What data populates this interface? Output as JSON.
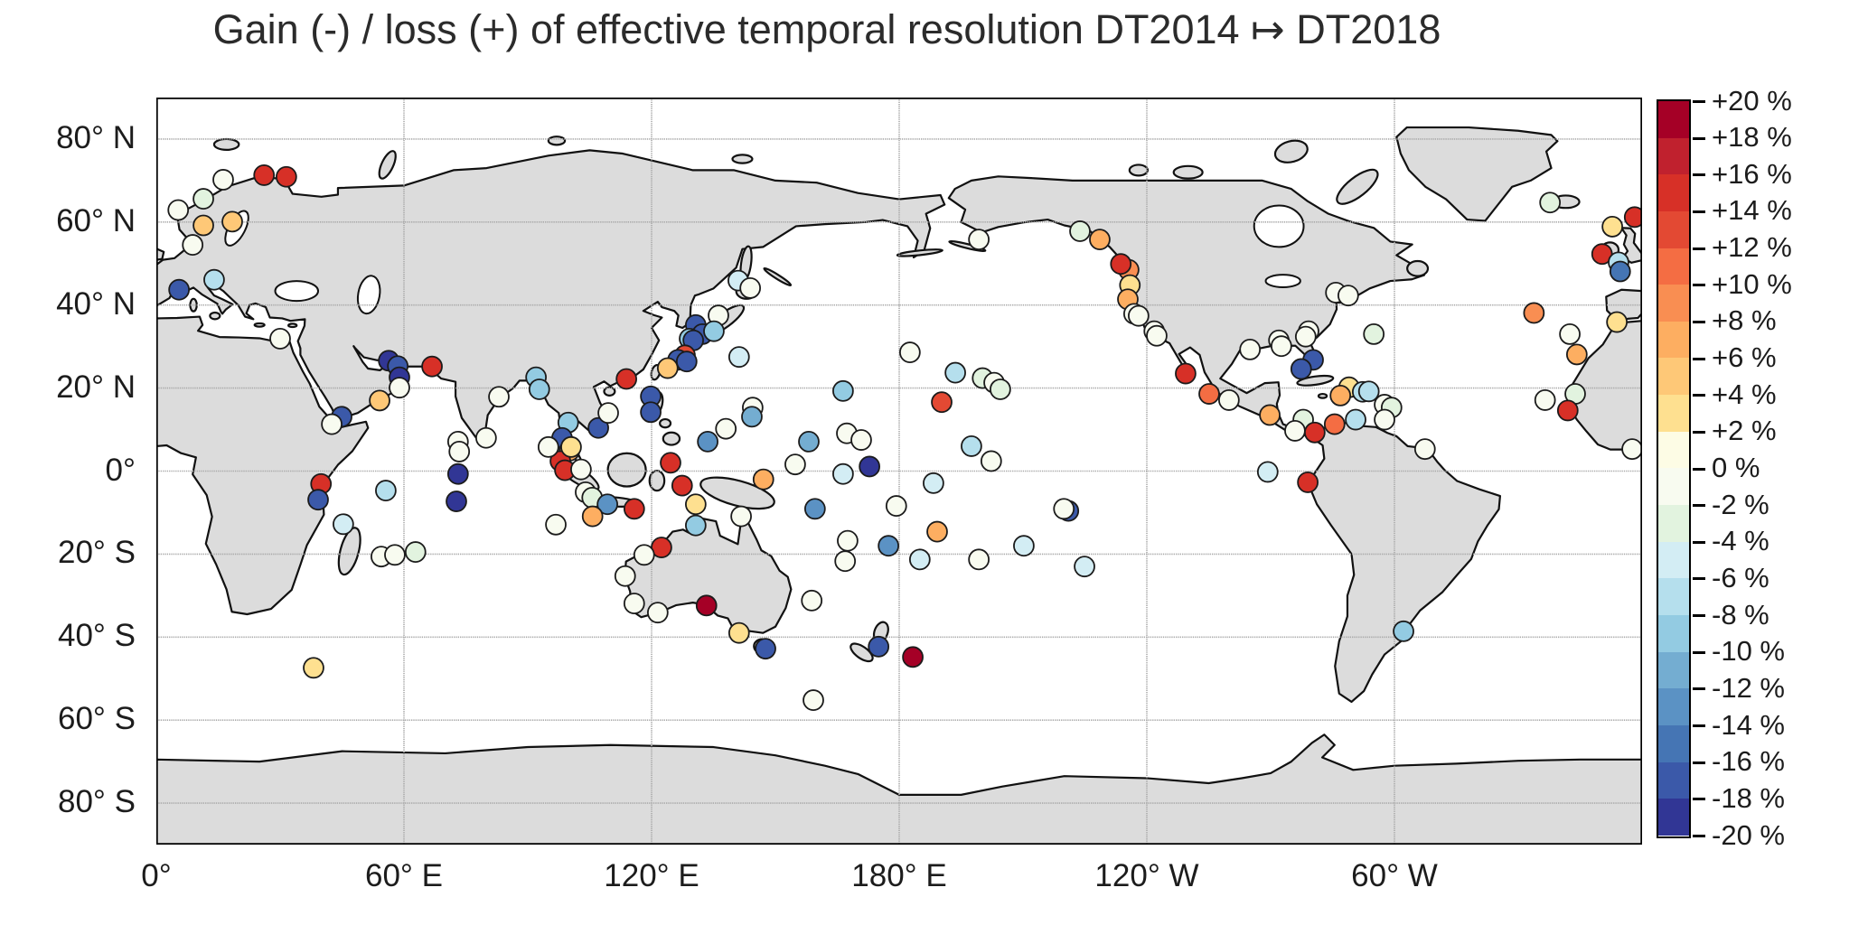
{
  "title": "Gain (-) / loss (+) of effective temporal resolution DT2014 ↦ DT2018",
  "colors": {
    "background": "#ffffff",
    "land": "#dcdcdc",
    "coastline": "#111111",
    "gridline": "#a9a9a9",
    "frame": "#000000",
    "marker_outline": "#1b1b1b"
  },
  "chart_data": {
    "type": "scatter",
    "projection": "equirectangular world map, Pacific-centered, longitude 0–360°E, latitude 90°N–90°S",
    "title": "Gain (-) / loss (+) of effective temporal resolution DT2014 ↦ DT2018",
    "grid": {
      "style": "dashed",
      "lats": [
        80,
        60,
        40,
        20,
        0,
        -20,
        -40,
        -60,
        -80
      ],
      "lons": [
        60,
        120,
        180,
        240,
        300
      ]
    },
    "x_ticks": [
      {
        "lon": 0,
        "label": "0°"
      },
      {
        "lon": 60,
        "label": "60° E"
      },
      {
        "lon": 120,
        "label": "120° E"
      },
      {
        "lon": 180,
        "label": "180° E"
      },
      {
        "lon": 240,
        "label": "120° W"
      },
      {
        "lon": 300,
        "label": "60° W"
      }
    ],
    "y_ticks": [
      {
        "lat": 80,
        "label": "80° N"
      },
      {
        "lat": 60,
        "label": "60° N"
      },
      {
        "lat": 40,
        "label": "40° N"
      },
      {
        "lat": 20,
        "label": "20° N"
      },
      {
        "lat": 0,
        "label": "0°"
      },
      {
        "lat": -20,
        "label": "20° S"
      },
      {
        "lat": -40,
        "label": "40° S"
      },
      {
        "lat": -60,
        "label": "60° S"
      },
      {
        "lat": -80,
        "label": "80° S"
      }
    ],
    "colorbar": {
      "unit": "%",
      "max": 20,
      "min": -20,
      "step": 2,
      "position": "right",
      "labels": [
        "+20 %",
        "+18 %",
        "+16 %",
        "+14 %",
        "+12 %",
        "+10 %",
        "+8 %",
        "+6 %",
        "+4 %",
        "+2 %",
        "0 %",
        "-2 %",
        "-4 %",
        "-6 %",
        "-8 %",
        "-10 %",
        "-12 %",
        "-14 %",
        "-16 %",
        "-18 %",
        "-20 %"
      ],
      "bin_colors": [
        "#a50026",
        "#c0212e",
        "#d73027",
        "#e34933",
        "#f46d43",
        "#f98e52",
        "#fdae61",
        "#fec877",
        "#fee090",
        "#fdfce5",
        "#f8fbf0",
        "#e2f3df",
        "#d3edf4",
        "#b5dfed",
        "#93cbe2",
        "#74add1",
        "#5b92c4",
        "#4575b4",
        "#3b59a9",
        "#313695"
      ]
    },
    "stations_format": "[longitude_deg_0_360, latitude_deg, change_percent]",
    "stations": [
      [
        26.1,
        71.3,
        16
      ],
      [
        31.5,
        70.9,
        16
      ],
      [
        16.2,
        70.2,
        0
      ],
      [
        11.4,
        65.6,
        -3
      ],
      [
        5.3,
        62.9,
        0
      ],
      [
        11.4,
        59.2,
        5
      ],
      [
        18.4,
        60.1,
        5
      ],
      [
        8.8,
        54.5,
        0
      ],
      [
        5.5,
        43.7,
        -17
      ],
      [
        14,
        46.1,
        -7
      ],
      [
        30,
        31.9,
        0
      ],
      [
        337.7,
        64.7,
        -3
      ],
      [
        352.8,
        58.9,
        3
      ],
      [
        358.2,
        61.2,
        16
      ],
      [
        350.3,
        52.3,
        16
      ],
      [
        354.3,
        50.3,
        -7
      ],
      [
        354.7,
        48.1,
        -15
      ],
      [
        333.8,
        38.1,
        9
      ],
      [
        353.9,
        35.9,
        3
      ],
      [
        342.5,
        33,
        0
      ],
      [
        344.2,
        28.1,
        7
      ],
      [
        343.8,
        18.6,
        -3
      ],
      [
        336.5,
        17.1,
        0
      ],
      [
        342,
        14.6,
        16
      ],
      [
        357.6,
        5.3,
        0
      ],
      [
        56.3,
        26.6,
        -18
      ],
      [
        58.5,
        25.3,
        -17
      ],
      [
        58.9,
        22.6,
        -18
      ],
      [
        58.9,
        20.1,
        0
      ],
      [
        66.8,
        25.2,
        16
      ],
      [
        54.1,
        17,
        5
      ],
      [
        44.9,
        13.1,
        -17
      ],
      [
        42.5,
        11.3,
        0
      ],
      [
        39.9,
        -3.1,
        16
      ],
      [
        39.2,
        -6.9,
        -17
      ],
      [
        55.6,
        -4.7,
        -7
      ],
      [
        45.3,
        -12.8,
        -5
      ],
      [
        54.5,
        -20.6,
        0
      ],
      [
        57.8,
        -20.2,
        0
      ],
      [
        62.8,
        -19.5,
        -3
      ],
      [
        38.1,
        -47.4,
        3
      ],
      [
        73.1,
        7.1,
        0
      ],
      [
        73.4,
        4.7,
        0
      ],
      [
        73.1,
        -0.7,
        -18
      ],
      [
        72.7,
        -7.3,
        -18
      ],
      [
        79.9,
        8,
        0
      ],
      [
        83,
        17.9,
        0
      ],
      [
        92,
        22.6,
        -8
      ],
      [
        92.8,
        19.7,
        -8
      ],
      [
        99.8,
        11.7,
        -8
      ],
      [
        98.3,
        8,
        -16
      ],
      [
        100.1,
        4.9,
        8
      ],
      [
        97.9,
        2.4,
        16
      ],
      [
        99,
        0.2,
        16
      ],
      [
        95,
        5.8,
        0
      ],
      [
        100.5,
        5.8,
        3
      ],
      [
        107.1,
        10.4,
        -17
      ],
      [
        109.5,
        14,
        0
      ],
      [
        113.9,
        22.2,
        16
      ],
      [
        119.8,
        18,
        -17
      ],
      [
        119.8,
        14.2,
        -17
      ],
      [
        124.6,
        2,
        16
      ],
      [
        127.4,
        -3.5,
        16
      ],
      [
        130.7,
        -8,
        3
      ],
      [
        102.9,
        0.4,
        0
      ],
      [
        104,
        -5.1,
        0
      ],
      [
        105.6,
        -6.4,
        -3
      ],
      [
        109.3,
        -8,
        -12
      ],
      [
        105.7,
        -10.9,
        8
      ],
      [
        115.8,
        -9.1,
        16
      ],
      [
        96.8,
        -12.9,
        0
      ],
      [
        141.7,
        -10.9,
        0
      ],
      [
        130.7,
        -13.1,
        -8
      ],
      [
        122.4,
        -18.4,
        16
      ],
      [
        118.2,
        -20.2,
        0
      ],
      [
        113.6,
        -25.3,
        0
      ],
      [
        115.8,
        -31.9,
        0
      ],
      [
        121.5,
        -34.1,
        0
      ],
      [
        133.3,
        -32.4,
        19
      ],
      [
        141.2,
        -39,
        3
      ],
      [
        147.6,
        -42.8,
        -17
      ],
      [
        147.1,
        -2,
        8
      ],
      [
        154.8,
        1.6,
        0
      ],
      [
        159.6,
        -9.1,
        -12
      ],
      [
        167.5,
        -16.8,
        0
      ],
      [
        166.9,
        -21.7,
        0
      ],
      [
        158.8,
        -31.2,
        0
      ],
      [
        175,
        -42.3,
        -17
      ],
      [
        183.3,
        -44.8,
        19
      ],
      [
        159.2,
        -55.2,
        0
      ],
      [
        130.7,
        35.2,
        -17
      ],
      [
        132.3,
        33,
        -17
      ],
      [
        129.2,
        31.9,
        -8
      ],
      [
        130.1,
        31.5,
        -16
      ],
      [
        128.1,
        27.9,
        14
      ],
      [
        126.4,
        26.8,
        -17
      ],
      [
        128.5,
        26.4,
        -17
      ],
      [
        123.9,
        24.8,
        5
      ],
      [
        136.2,
        37.5,
        0
      ],
      [
        135.1,
        33.7,
        -8
      ],
      [
        141,
        45.9,
        -5
      ],
      [
        143.9,
        44.1,
        0
      ],
      [
        141.2,
        27.5,
        -5
      ],
      [
        138,
        10.2,
        0
      ],
      [
        133.6,
        7.1,
        -12
      ],
      [
        144.5,
        15.3,
        0
      ],
      [
        144.3,
        13.1,
        -10
      ],
      [
        166.4,
        19.3,
        -8
      ],
      [
        182.6,
        28.6,
        0
      ],
      [
        190.3,
        16.6,
        14
      ],
      [
        193.6,
        23.7,
        -6
      ],
      [
        200.2,
        22.4,
        -2
      ],
      [
        203,
        21.3,
        -1
      ],
      [
        204.5,
        19.7,
        -2
      ],
      [
        158.1,
        7.1,
        -10
      ],
      [
        167.3,
        9.1,
        0
      ],
      [
        170.8,
        7.5,
        0
      ],
      [
        172.8,
        1.1,
        -18
      ],
      [
        166.4,
        -0.7,
        -4
      ],
      [
        197.5,
        6,
        -6
      ],
      [
        202.3,
        2.4,
        0
      ],
      [
        188.3,
        -2.9,
        -4
      ],
      [
        179.3,
        -8.4,
        0
      ],
      [
        189.2,
        -14.6,
        8
      ],
      [
        177.4,
        -18,
        -12
      ],
      [
        185,
        -21.3,
        -4
      ],
      [
        199.3,
        -21.3,
        0
      ],
      [
        210.2,
        -18,
        -4
      ],
      [
        221,
        -9.6,
        -16
      ],
      [
        219.9,
        -9.1,
        0
      ],
      [
        224.9,
        -23,
        -4
      ],
      [
        199.3,
        55.8,
        0
      ],
      [
        223.8,
        57.8,
        -3
      ],
      [
        228.6,
        55.8,
        8
      ],
      [
        235.6,
        48.5,
        10
      ],
      [
        233.7,
        49.9,
        16
      ],
      [
        235.9,
        44.8,
        3
      ],
      [
        235.4,
        41.4,
        8
      ],
      [
        236.9,
        37.9,
        0
      ],
      [
        238,
        37.4,
        0
      ],
      [
        241.8,
        33.7,
        0
      ],
      [
        242.4,
        32.6,
        0
      ],
      [
        249.4,
        23.5,
        16
      ],
      [
        255.1,
        18.6,
        12
      ],
      [
        259.9,
        17.1,
        0
      ],
      [
        269.8,
        13.5,
        8
      ],
      [
        277.9,
        12.4,
        -2
      ],
      [
        275.9,
        9.7,
        0
      ],
      [
        280.7,
        9.3,
        16
      ],
      [
        285.5,
        11.3,
        12
      ],
      [
        290.6,
        12.4,
        -6
      ],
      [
        297.6,
        16,
        0
      ],
      [
        299.3,
        15.3,
        -2
      ],
      [
        297.6,
        12.4,
        0
      ],
      [
        280.3,
        26.8,
        -17
      ],
      [
        277.4,
        24.6,
        -17
      ],
      [
        289,
        20.2,
        3
      ],
      [
        286.9,
        18.2,
        8
      ],
      [
        292.3,
        19.1,
        -6
      ],
      [
        293.8,
        19.2,
        -6
      ],
      [
        265,
        29.3,
        0
      ],
      [
        272,
        31.5,
        0
      ],
      [
        272.6,
        30.1,
        0
      ],
      [
        279.2,
        33.7,
        0
      ],
      [
        278.5,
        32.4,
        0
      ],
      [
        285.8,
        43,
        0
      ],
      [
        288.8,
        42.3,
        0
      ],
      [
        295,
        33,
        -2
      ],
      [
        269.3,
        -0.2,
        -4
      ],
      [
        279,
        -2.7,
        16
      ],
      [
        307.4,
        5.3,
        0
      ],
      [
        302.2,
        -38.6,
        -8
      ]
    ]
  }
}
